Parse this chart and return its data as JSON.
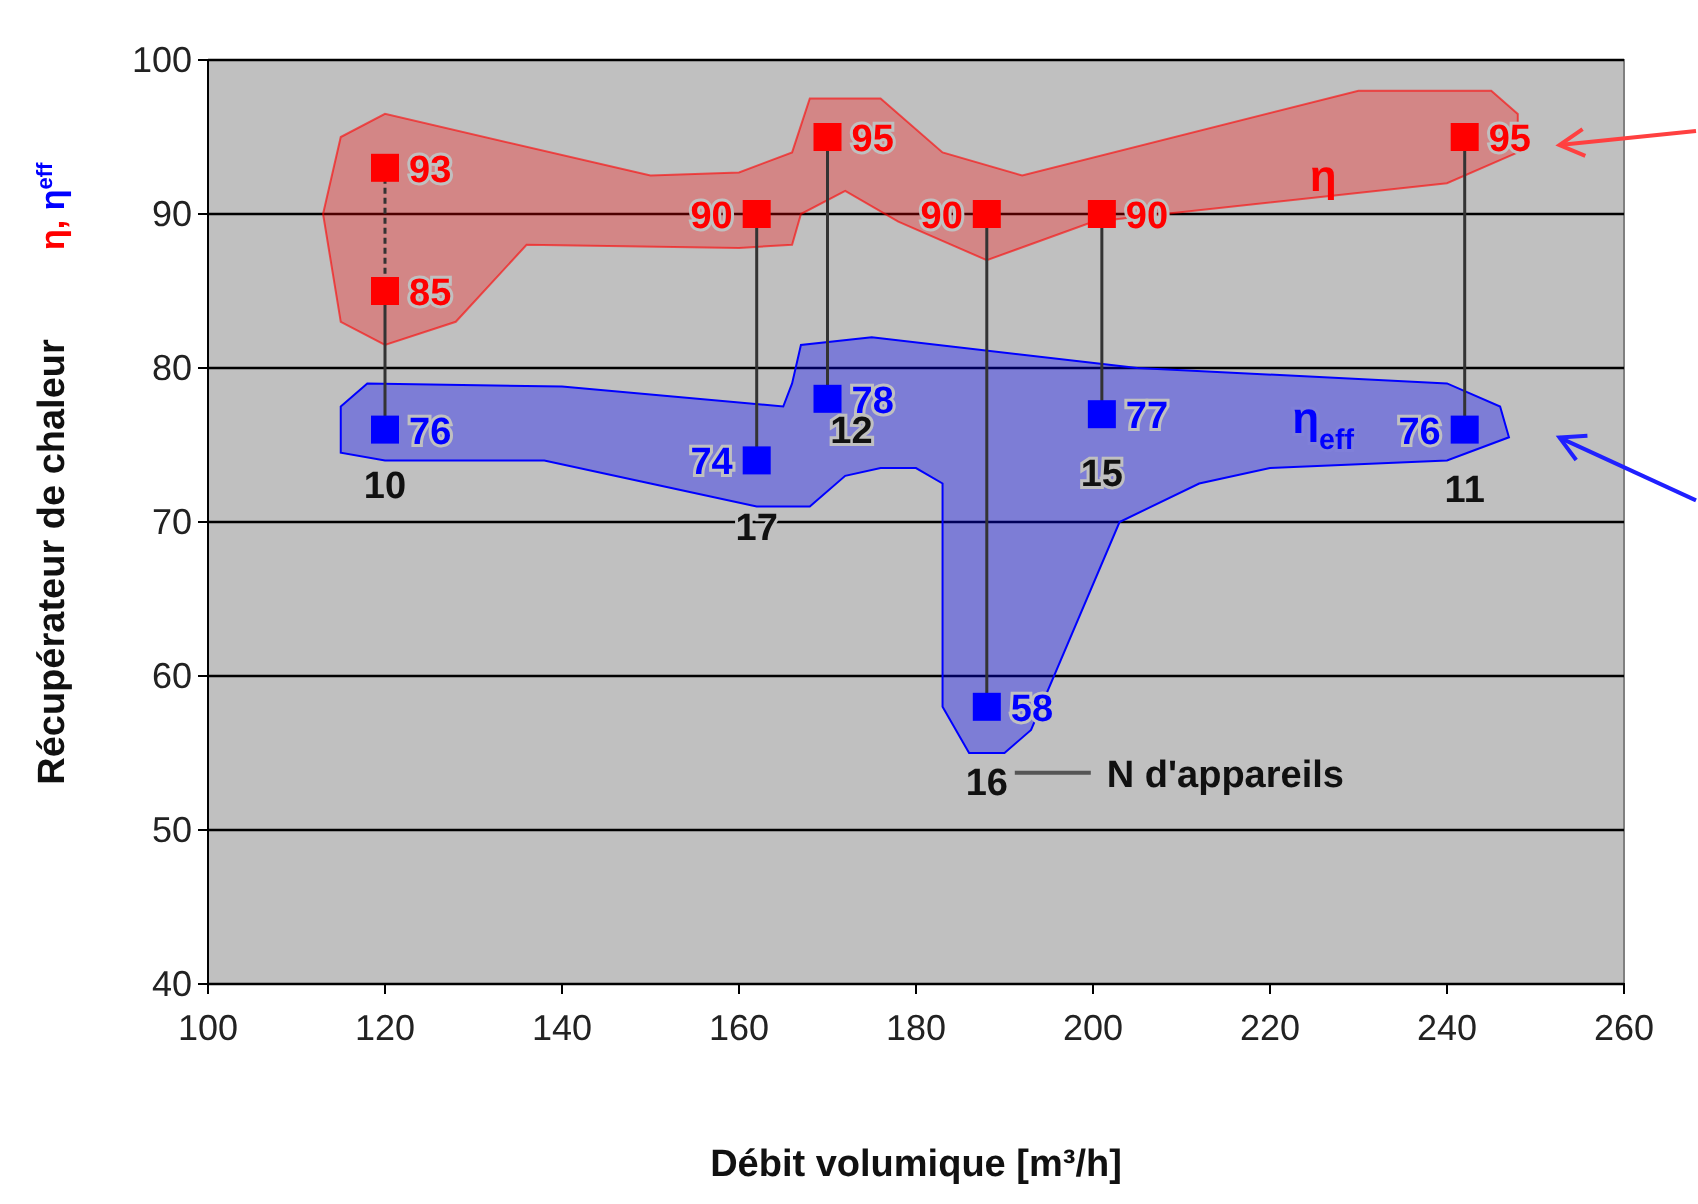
{
  "chart_data": {
    "type": "scatter",
    "xlabel": "Débit volumique  [m³/h]",
    "ylabel": "Récupérateur de chaleur",
    "xlim": [
      100,
      260
    ],
    "xticks": [
      100,
      120,
      140,
      160,
      180,
      200,
      220,
      240,
      260
    ],
    "ylim": [
      40,
      100
    ],
    "yticks": [
      40,
      50,
      60,
      70,
      80,
      90,
      100
    ],
    "grid": "y",
    "marker": "square",
    "data_labels": true,
    "legend": false,
    "series": [
      {
        "name": "η",
        "color": "#ff0000",
        "x": [
          120,
          120,
          162,
          170,
          188,
          201,
          242
        ],
        "values": [
          93,
          85,
          90,
          95,
          90,
          90,
          95
        ]
      },
      {
        "name": "η$_{eff}$",
        "color": "#0000ff",
        "x": [
          120,
          162,
          170,
          188,
          201,
          242
        ],
        "values": [
          76,
          74,
          78,
          58,
          77,
          76
        ]
      }
    ],
    "annotations": [
      "η, η$^{eff}$",
      {
        "text": "10",
        "x": 120,
        "y": 76
      },
      {
        "text": "17",
        "x": 162,
        "y": 74
      },
      {
        "text": "12",
        "x": 170,
        "y": 78
      },
      {
        "text": "16",
        "x": 188,
        "y": 58
      },
      {
        "text": "15",
        "x": 201,
        "y": 77
      },
      {
        "text": "11",
        "x": 242,
        "y": 76
      },
      "N d'appareils"
    ]
  }
}
